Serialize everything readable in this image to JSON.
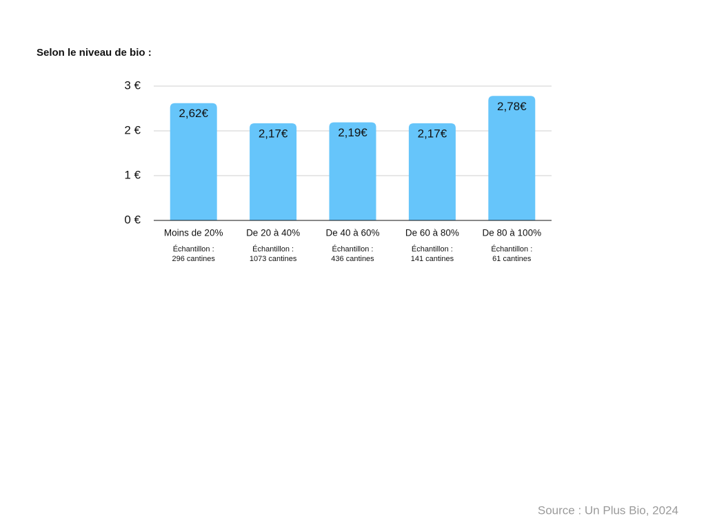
{
  "chart_data": {
    "type": "bar",
    "title": "Selon le niveau de bio :",
    "categories": [
      "Moins de 20%",
      "De 20 à 40%",
      "De 40 à 60%",
      "De 60 à 80%",
      "De 80 à 100%"
    ],
    "sublabels": [
      [
        "Échantillon :",
        "296 cantines"
      ],
      [
        "Échantillon :",
        "1073 cantines"
      ],
      [
        "Échantillon :",
        "436 cantines"
      ],
      [
        "Échantillon :",
        "141 cantines"
      ],
      [
        "Échantillon :",
        "61 cantines"
      ]
    ],
    "values": [
      2.62,
      2.17,
      2.19,
      2.17,
      2.78
    ],
    "value_labels": [
      "2,62€",
      "2,17€",
      "2,19€",
      "2,17€",
      "2,78€"
    ],
    "color": "#66c5fa",
    "ylim": [
      0,
      3
    ],
    "yticks": [
      {
        "value": 0,
        "label": "0 €"
      },
      {
        "value": 1,
        "label": "1 €"
      },
      {
        "value": 2,
        "label": "2 €"
      },
      {
        "value": 3,
        "label": "3 €"
      }
    ],
    "grid": true,
    "source": "Source : Un Plus Bio, 2024"
  }
}
